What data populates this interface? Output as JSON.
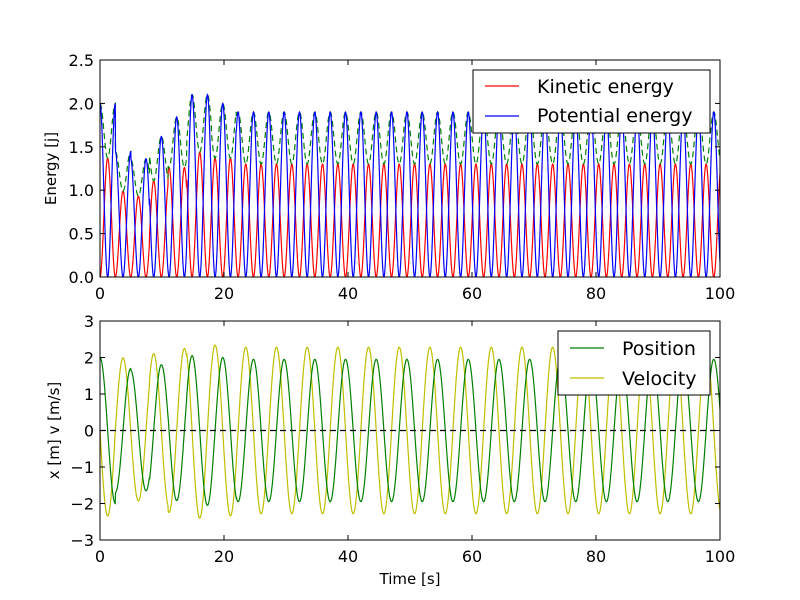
{
  "chart_data": [
    {
      "type": "line",
      "title": "",
      "xlabel": "",
      "ylabel": "Energy [j]",
      "xlim": [
        0,
        100
      ],
      "ylim": [
        0,
        2.5
      ],
      "xticks": [
        0,
        20,
        40,
        60,
        80,
        100
      ],
      "yticks": [
        0.0,
        0.5,
        1.0,
        1.5,
        2.0,
        2.5
      ],
      "ytick_labels": [
        "0.0",
        "0.5",
        "1.0",
        "1.5",
        "2.0",
        "2.5"
      ],
      "grid": false,
      "legend_position": "top-right",
      "series": [
        {
          "name": "Kinetic energy",
          "color": "#ff0000",
          "style": "solid",
          "description_values": {
            "peak_min": 0.8,
            "peak_max": 1.42,
            "min": 0
          }
        },
        {
          "name": "Potential energy",
          "color": "#0000ff",
          "style": "solid",
          "description_values": {
            "peak_min": 1.37,
            "peak_max": 2.08,
            "min": 0
          }
        },
        {
          "color": "#008000",
          "style": "dashed",
          "description_values": {
            "range_min": 0.75,
            "range_max": 2.1
          }
        }
      ]
    },
    {
      "type": "line",
      "title": "",
      "xlabel": "Time [s]",
      "ylabel": "x [m] v [m/s]",
      "xlim": [
        0,
        100
      ],
      "ylim": [
        -3,
        3
      ],
      "xticks": [
        0,
        20,
        40,
        60,
        80,
        100
      ],
      "yticks": [
        -3,
        -2,
        -1,
        0,
        1,
        2,
        3
      ],
      "ytick_labels": [
        "−3",
        "−2",
        "−1",
        "0",
        "1",
        "2",
        "3"
      ],
      "grid": false,
      "legend_position": "top-right",
      "series": [
        {
          "name": "Position",
          "color": "#008000",
          "style": "solid",
          "description_values": {
            "x_at_0": 2.0,
            "amplitude_min": 1.65,
            "amplitude_max": 2.05,
            "period": 4.95
          }
        },
        {
          "name": "Velocity",
          "color": "#bfbf00",
          "style": "solid",
          "description_values": {
            "v_at_0": 0,
            "amplitude_min": 1.8,
            "amplitude_max": 2.38,
            "period": 4.95
          }
        },
        {
          "color": "#000000",
          "style": "dashed",
          "description_values": {
            "y": 0
          }
        }
      ]
    }
  ]
}
